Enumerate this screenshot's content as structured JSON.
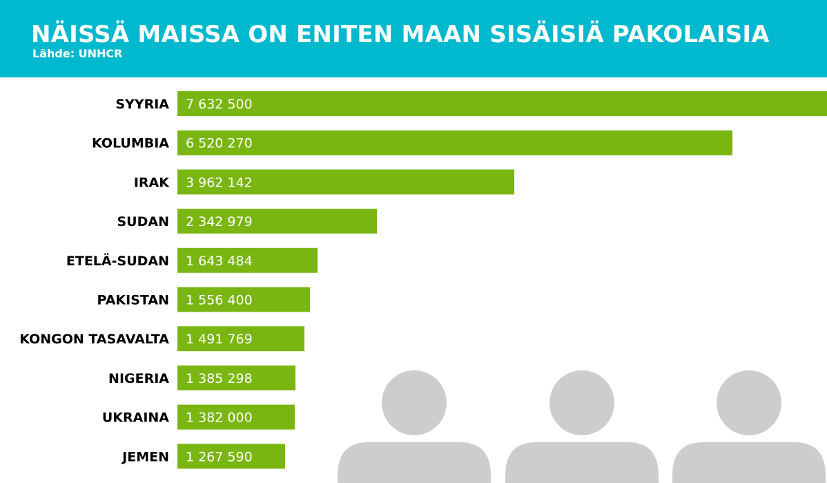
{
  "header": {
    "title": "NÄISSÄ MAISSA ON ENITEN MAAN SISÄISIÄ PAKOLAISIA",
    "source": "Lähde: UNHCR"
  },
  "colors": {
    "header_bg": "#00b9cf",
    "bar": "#7ab611",
    "bar_label": "#ffffff",
    "category_label": "#000000",
    "silhouette": "#cdcdcd"
  },
  "icons": [
    "person-silhouette-icon",
    "person-silhouette-icon",
    "person-silhouette-icon"
  ],
  "chart_data": {
    "type": "bar",
    "orientation": "horizontal",
    "title": "NÄISSÄ MAISSA ON ENITEN MAAN SISÄISIÄ PAKOLAISIA",
    "subtitle": "Lähde: UNHCR",
    "categories": [
      "SYYRIA",
      "KOLUMBIA",
      "IRAK",
      "SUDAN",
      "ETELÄ-SUDAN",
      "PAKISTAN",
      "KONGON TASAVALTA",
      "NIGERIA",
      "UKRAINA",
      "JEMEN"
    ],
    "values": [
      7632500,
      6520270,
      3962142,
      2342979,
      1643484,
      1556400,
      1491769,
      1385298,
      1382000,
      1267590
    ],
    "value_labels": [
      "7 632 500",
      "6 520 270",
      "3 962 142",
      "2 342 979",
      "1 643 484",
      "1 556 400",
      "1 491 769",
      "1 385 298",
      "1 382 000",
      "1 267 590"
    ],
    "xlim": [
      0,
      7632500
    ],
    "grid": false,
    "legend": "none"
  }
}
